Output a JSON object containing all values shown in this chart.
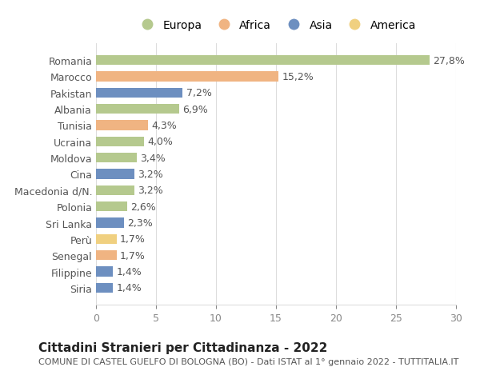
{
  "countries": [
    "Romania",
    "Marocco",
    "Pakistan",
    "Albania",
    "Tunisia",
    "Ucraina",
    "Moldova",
    "Cina",
    "Macedonia d/N.",
    "Polonia",
    "Sri Lanka",
    "Perù",
    "Senegal",
    "Filippine",
    "Siria"
  ],
  "values": [
    27.8,
    15.2,
    7.2,
    6.9,
    4.3,
    4.0,
    3.4,
    3.2,
    3.2,
    2.6,
    2.3,
    1.7,
    1.7,
    1.4,
    1.4
  ],
  "labels": [
    "27,8%",
    "15,2%",
    "7,2%",
    "6,9%",
    "4,3%",
    "4,0%",
    "3,4%",
    "3,2%",
    "3,2%",
    "2,6%",
    "2,3%",
    "1,7%",
    "1,7%",
    "1,4%",
    "1,4%"
  ],
  "continents": [
    "Europa",
    "Africa",
    "Asia",
    "Europa",
    "Africa",
    "Europa",
    "Europa",
    "Asia",
    "Europa",
    "Europa",
    "Asia",
    "America",
    "Africa",
    "Asia",
    "Asia"
  ],
  "continent_colors": {
    "Europa": "#b5c98e",
    "Africa": "#f0b482",
    "Asia": "#6d8fc0",
    "America": "#f0d080"
  },
  "legend_order": [
    "Europa",
    "Africa",
    "Asia",
    "America"
  ],
  "xlim": [
    0,
    30
  ],
  "xticks": [
    0,
    5,
    10,
    15,
    20,
    25,
    30
  ],
  "title": "Cittadini Stranieri per Cittadinanza - 2022",
  "subtitle": "COMUNE DI CASTEL GUELFO DI BOLOGNA (BO) - Dati ISTAT al 1° gennaio 2022 - TUTTITALIA.IT",
  "background_color": "#ffffff",
  "grid_color": "#dddddd",
  "bar_height": 0.6,
  "label_fontsize": 9,
  "tick_fontsize": 9,
  "title_fontsize": 11,
  "subtitle_fontsize": 8
}
